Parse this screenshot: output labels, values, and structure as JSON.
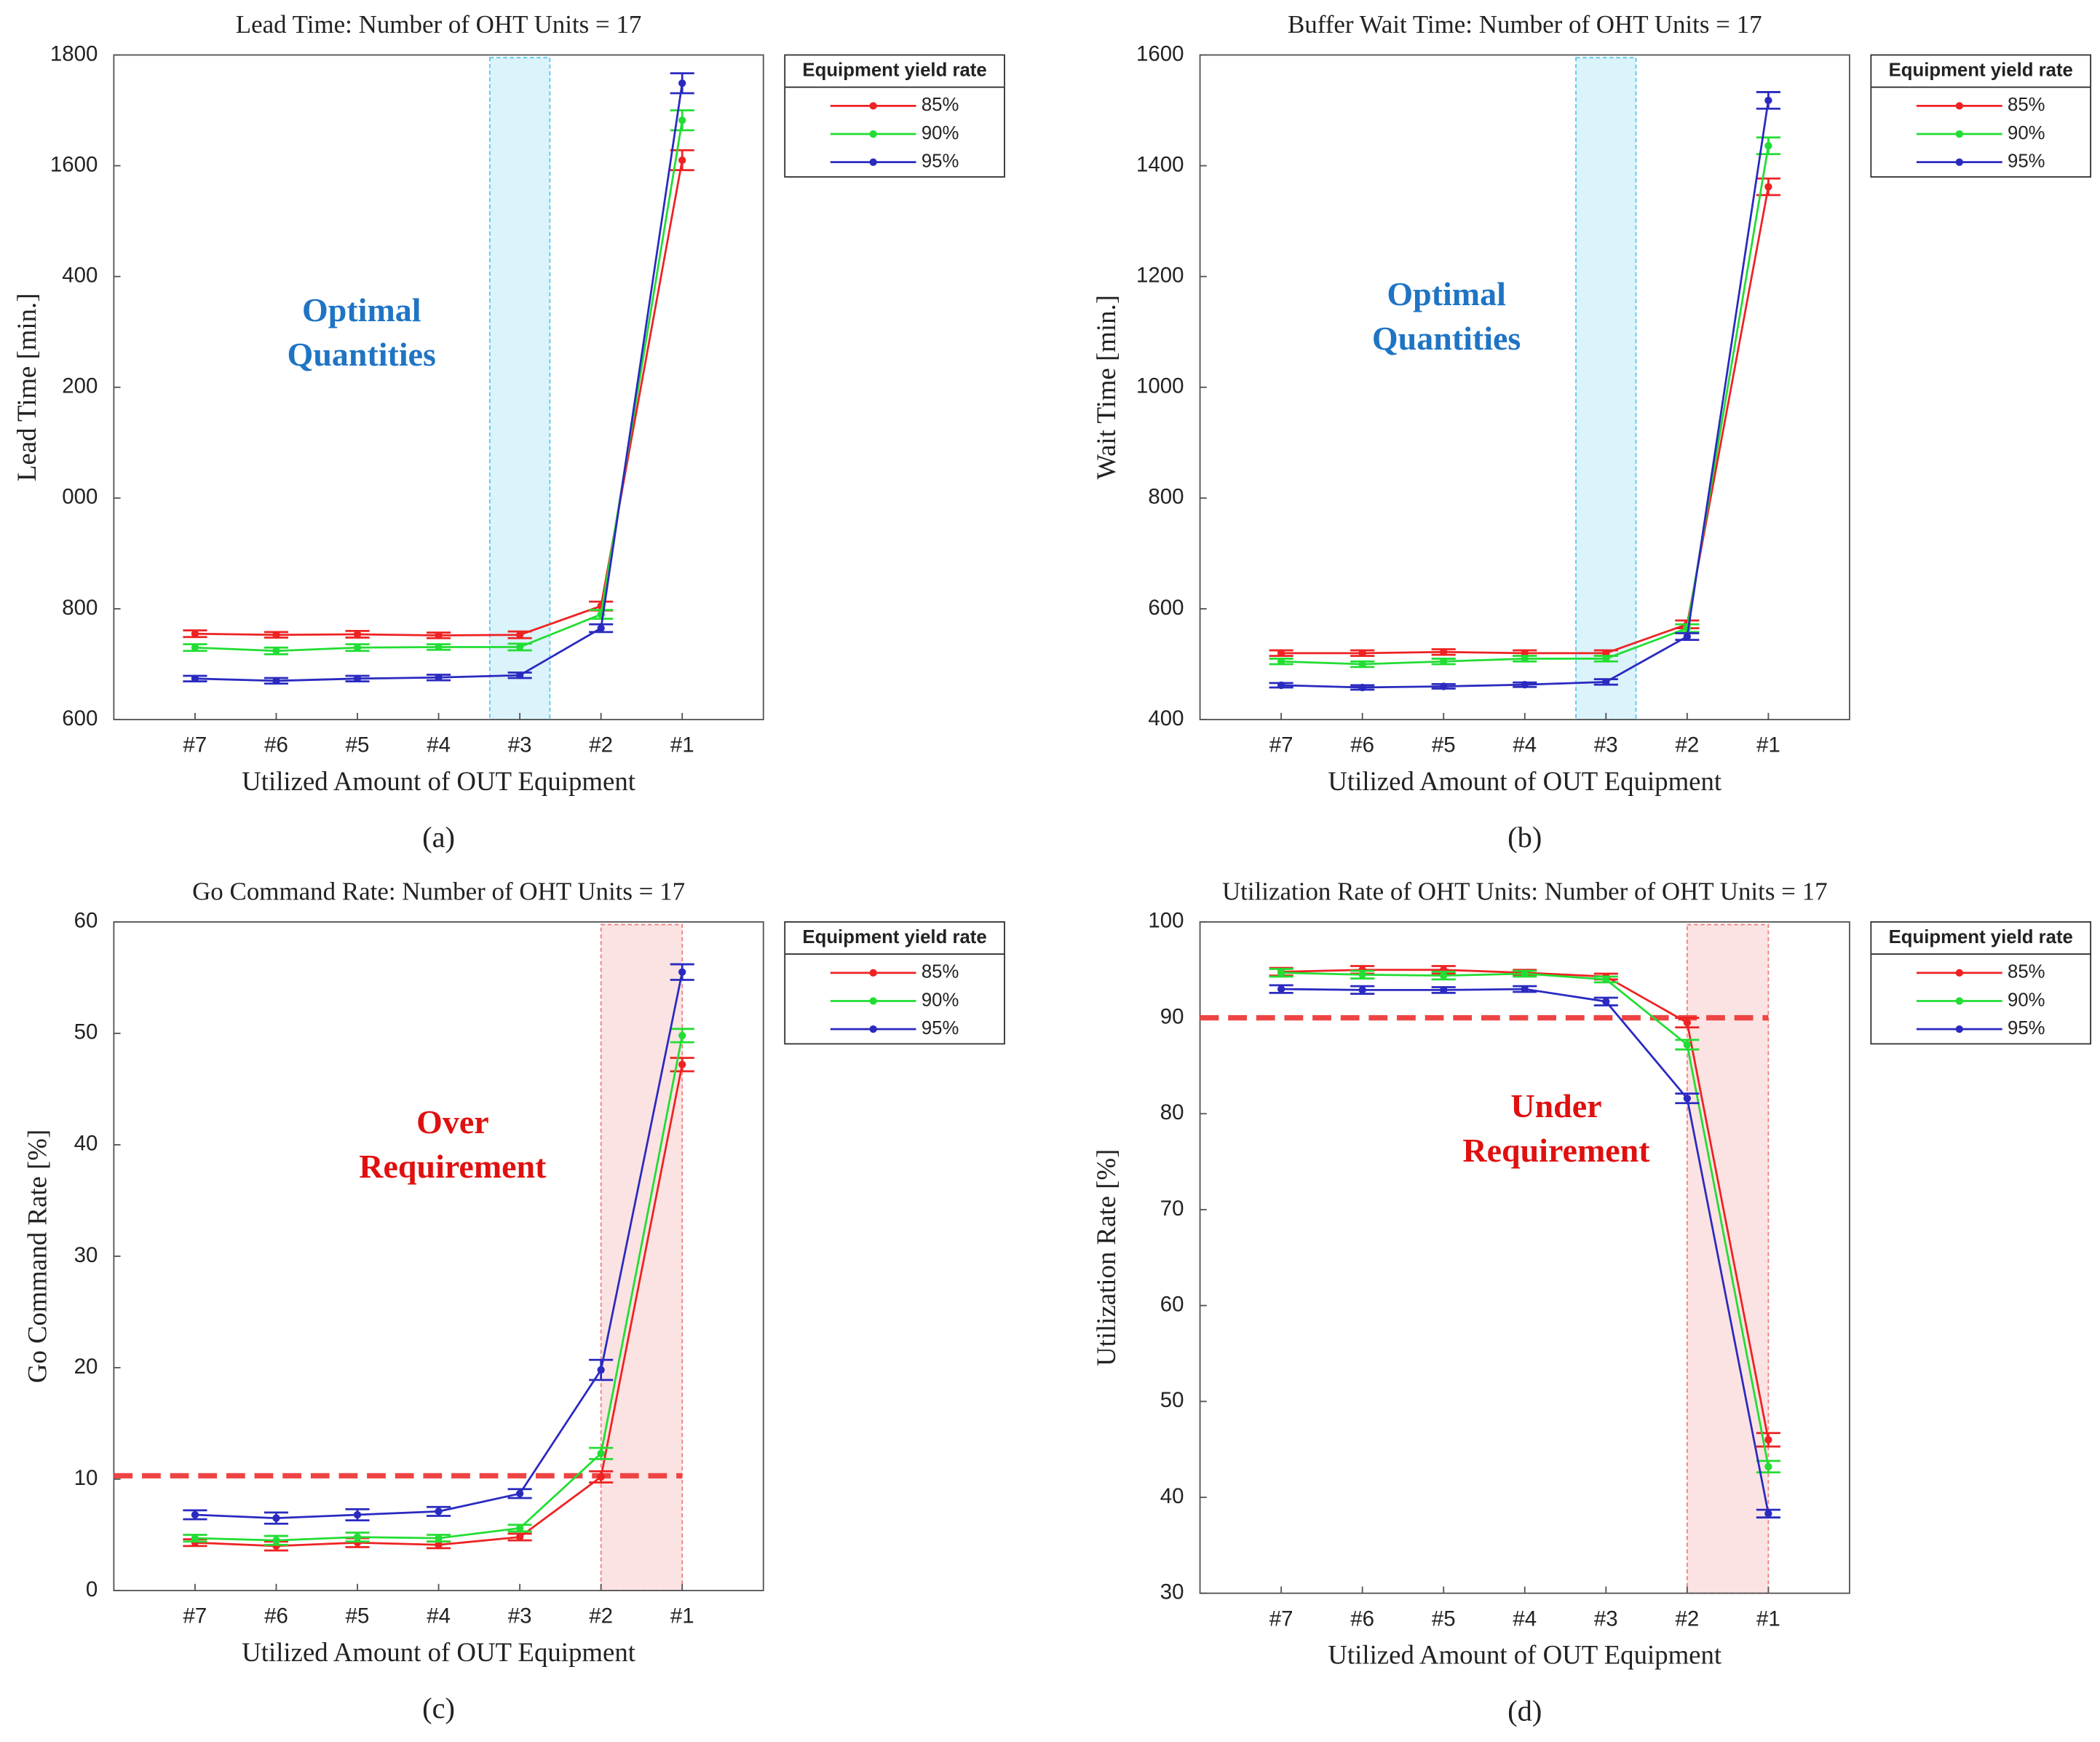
{
  "chart_data": [
    {
      "type": "line",
      "title": "Lead Time: Number of OHT Units = 17",
      "x_label": "Utilized Amount of OUT Equipment",
      "y_label": "Lead Time [min.]",
      "caption": "(a)",
      "categories": [
        "#7",
        "#6",
        "#5",
        "#4",
        "#3",
        "#2",
        "#1"
      ],
      "ylim": [
        600,
        1800
      ],
      "yticks": [
        600,
        800,
        {
          "value": 1000,
          "label": "000"
        },
        {
          "value": 1200,
          "label": "200"
        },
        {
          "value": 1400,
          "label": "400"
        },
        1600,
        1800
      ],
      "legend_title": "Equipment yield rate",
      "annotation": [
        "Optimal",
        "Quantities"
      ],
      "annotation_color": "#1f74c4",
      "highlight_categories": [
        4
      ],
      "highlight_color": "#5bc8ec",
      "series": [
        {
          "name": "85%",
          "color": "#ee2222",
          "values": [
            755,
            753,
            754,
            752,
            753,
            805,
            1610
          ],
          "errors": [
            6,
            5,
            6,
            5,
            6,
            8,
            18
          ]
        },
        {
          "name": "90%",
          "color": "#22dd33",
          "values": [
            730,
            724,
            730,
            731,
            731,
            790,
            1682
          ],
          "errors": [
            6,
            6,
            6,
            5,
            6,
            8,
            18
          ]
        },
        {
          "name": "95%",
          "color": "#2a2ac0",
          "values": [
            674,
            670,
            674,
            676,
            680,
            765,
            1749
          ],
          "errors": [
            5,
            5,
            5,
            5,
            5,
            7,
            18
          ]
        }
      ]
    },
    {
      "type": "line",
      "title": "Buffer Wait Time: Number of OHT Units = 17",
      "x_label": "Utilized Amount of OUT Equipment",
      "y_label": "Wait Time [min.]",
      "caption": "(b)",
      "categories": [
        "#7",
        "#6",
        "#5",
        "#4",
        "#3",
        "#2",
        "#1"
      ],
      "ylim": [
        400,
        1600
      ],
      "yticks": [
        400,
        600,
        800,
        1000,
        1200,
        1400,
        1600
      ],
      "legend_title": "Equipment yield rate",
      "annotation": [
        "Optimal",
        "Quantities"
      ],
      "annotation_color": "#1f74c4",
      "highlight_categories": [
        4
      ],
      "highlight_color": "#5bc8ec",
      "series": [
        {
          "name": "85%",
          "color": "#ee2222",
          "values": [
            520,
            520,
            522,
            520,
            520,
            572,
            1362
          ],
          "errors": [
            5,
            5,
            5,
            5,
            5,
            7,
            15
          ]
        },
        {
          "name": "90%",
          "color": "#22dd33",
          "values": [
            505,
            500,
            505,
            510,
            510,
            565,
            1436
          ],
          "errors": [
            5,
            5,
            5,
            5,
            5,
            7,
            15
          ]
        },
        {
          "name": "95%",
          "color": "#2a2ac0",
          "values": [
            462,
            458,
            460,
            463,
            468,
            550,
            1518
          ],
          "errors": [
            4,
            4,
            4,
            4,
            5,
            6,
            15
          ]
        }
      ]
    },
    {
      "type": "line",
      "title": "Go Command Rate: Number of OHT Units = 17",
      "x_label": "Utilized Amount of OUT Equipment",
      "y_label": "Go Command Rate [%]",
      "caption": "(c)",
      "categories": [
        "#7",
        "#6",
        "#5",
        "#4",
        "#3",
        "#2",
        "#1"
      ],
      "ylim": [
        0,
        60
      ],
      "yticks": [
        0,
        10,
        20,
        30,
        40,
        50,
        60
      ],
      "legend_title": "Equipment yield rate",
      "annotation": [
        "Over",
        "Requirement"
      ],
      "annotation_color": "#e01010",
      "highlight_categories": [
        5,
        6
      ],
      "highlight_color": "#f08080",
      "ref_line": 10.3,
      "ref_color": "#ee4444",
      "series": [
        {
          "name": "85%",
          "color": "#ee2222",
          "values": [
            4.3,
            4.0,
            4.3,
            4.1,
            4.8,
            10.2,
            47.2
          ],
          "errors": [
            0.3,
            0.4,
            0.4,
            0.3,
            0.3,
            0.5,
            0.6
          ]
        },
        {
          "name": "90%",
          "color": "#22dd33",
          "values": [
            4.7,
            4.5,
            4.8,
            4.7,
            5.6,
            12.3,
            49.8
          ],
          "errors": [
            0.3,
            0.4,
            0.4,
            0.3,
            0.3,
            0.5,
            0.6
          ]
        },
        {
          "name": "95%",
          "color": "#2a2ac0",
          "values": [
            6.8,
            6.5,
            6.8,
            7.1,
            8.7,
            19.8,
            55.5
          ],
          "errors": [
            0.4,
            0.5,
            0.5,
            0.4,
            0.4,
            0.9,
            0.7
          ]
        }
      ]
    },
    {
      "type": "line",
      "title": "Utilization Rate of OHT Units: Number of OHT Units = 17",
      "x_label": "Utilized Amount of OUT Equipment",
      "y_label": "Utilization Rate [%]",
      "caption": "(d)",
      "categories": [
        "#7",
        "#6",
        "#5",
        "#4",
        "#3",
        "#2",
        "#1"
      ],
      "ylim": [
        30,
        100
      ],
      "yticks": [
        30,
        40,
        50,
        60,
        70,
        80,
        90,
        100
      ],
      "legend_title": "Equipment yield rate",
      "annotation": [
        "Under",
        "Requirement"
      ],
      "annotation_color": "#e01010",
      "highlight_categories": [
        5,
        6
      ],
      "highlight_color": "#f08080",
      "ref_line": 90,
      "ref_color": "#ee4444",
      "series": [
        {
          "name": "85%",
          "color": "#ee2222",
          "values": [
            94.8,
            95.0,
            95.0,
            94.7,
            94.3,
            89.5,
            46.0
          ],
          "errors": [
            0.4,
            0.4,
            0.4,
            0.3,
            0.3,
            0.5,
            0.7
          ]
        },
        {
          "name": "90%",
          "color": "#22dd33",
          "values": [
            94.7,
            94.5,
            94.4,
            94.6,
            94.0,
            87.2,
            43.2
          ],
          "errors": [
            0.4,
            0.4,
            0.4,
            0.3,
            0.3,
            0.5,
            0.6
          ]
        },
        {
          "name": "95%",
          "color": "#2a2ac0",
          "values": [
            93.0,
            92.9,
            92.9,
            93.0,
            91.7,
            81.6,
            38.3
          ],
          "errors": [
            0.4,
            0.4,
            0.3,
            0.3,
            0.4,
            0.5,
            0.4
          ]
        }
      ]
    }
  ]
}
